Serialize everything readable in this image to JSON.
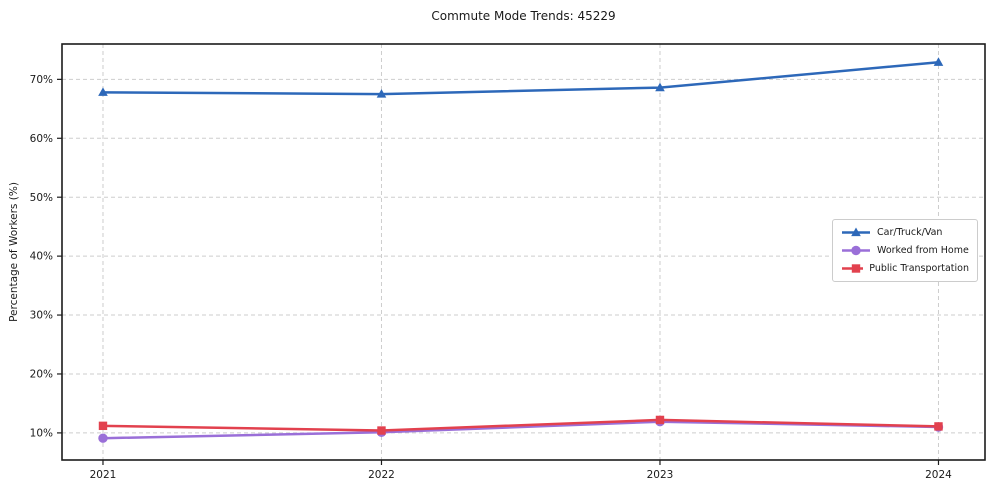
{
  "figure": {
    "title": "Commute Mode Trends: 45229",
    "ylabel": "Percentage of Workers (%)"
  },
  "chart_data": {
    "type": "line",
    "title": "Commute Mode Trends: 45229",
    "xlabel": "",
    "ylabel": "Percentage of Workers (%)",
    "x": [
      2021,
      2022,
      2023,
      2024
    ],
    "xticklabels": [
      "2021",
      "2022",
      "2023",
      "2024"
    ],
    "yticks": {
      "values": [
        10,
        20,
        30,
        40,
        50,
        60,
        70
      ],
      "labels": [
        "10%",
        "20%",
        "30%",
        "40%",
        "50%",
        "60%",
        "70%"
      ]
    },
    "ylim": [
      5.4,
      76.0
    ],
    "grid": true,
    "legend_position": "center right",
    "series": [
      {
        "name": "Car/Truck/Van",
        "color": "#2d68b9",
        "marker": "triangle",
        "values": [
          67.8,
          67.5,
          68.6,
          72.9
        ]
      },
      {
        "name": "Worked from Home",
        "color": "#9a6fd8",
        "marker": "circle",
        "values": [
          9.1,
          10.1,
          11.9,
          11.0
        ]
      },
      {
        "name": "Public Transportation",
        "color": "#e2414e",
        "marker": "square",
        "values": [
          11.2,
          10.4,
          12.2,
          11.1
        ]
      }
    ]
  },
  "colors": {
    "grid": "#cdcdcd",
    "axis": "#1c1c1c",
    "tick_text": "#1a1a1a",
    "background": "#ffffff"
  }
}
